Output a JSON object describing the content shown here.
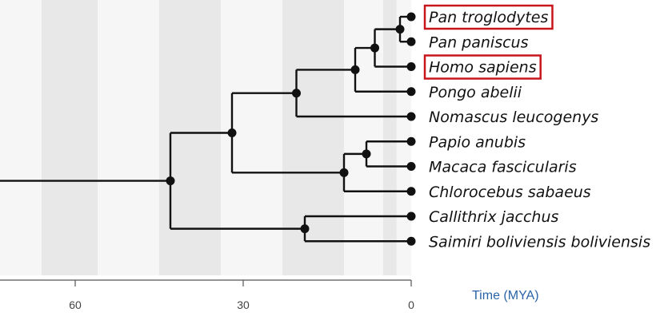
{
  "tree": {
    "taxa": [
      {
        "id": "pan_troglodytes",
        "label": "Pan troglodytes",
        "highlighted": true
      },
      {
        "id": "pan_paniscus",
        "label": "Pan paniscus",
        "highlighted": false
      },
      {
        "id": "homo_sapiens",
        "label": "Homo sapiens",
        "highlighted": true
      },
      {
        "id": "pongo_abelii",
        "label": "Pongo abelii",
        "highlighted": false
      },
      {
        "id": "nomascus_leucogenys",
        "label": "Nomascus leucogenys",
        "highlighted": false
      },
      {
        "id": "papio_anubis",
        "label": "Papio anubis",
        "highlighted": false
      },
      {
        "id": "macaca_fascicularis",
        "label": "Macaca fascicularis",
        "highlighted": false
      },
      {
        "id": "chlorocebus_sabaeus",
        "label": "Chlorocebus sabaeus",
        "highlighted": false
      },
      {
        "id": "callithrix_jacchus",
        "label": "Callithrix jacchus",
        "highlighted": false
      },
      {
        "id": "saimiri_boliviensis",
        "label": "Saimiri boliviensis boliviensis",
        "highlighted": false
      }
    ],
    "clades": [
      {
        "id": "pan",
        "age_mya": 2,
        "children": [
          "pan_troglodytes",
          "pan_paniscus"
        ]
      },
      {
        "id": "homininae",
        "age_mya": 6.5,
        "children": [
          "pan",
          "homo_sapiens"
        ]
      },
      {
        "id": "hominidae",
        "age_mya": 10,
        "children": [
          "homininae",
          "pongo_abelii"
        ]
      },
      {
        "id": "hominoidea",
        "age_mya": 20.5,
        "children": [
          "hominidae",
          "nomascus_leucogenys"
        ]
      },
      {
        "id": "papionini",
        "age_mya": 8,
        "children": [
          "papio_anubis",
          "macaca_fascicularis"
        ]
      },
      {
        "id": "cercopithecinae",
        "age_mya": 12,
        "children": [
          "papionini",
          "chlorocebus_sabaeus"
        ]
      },
      {
        "id": "catarrhini",
        "age_mya": 32,
        "children": [
          "hominoidea",
          "cercopithecinae"
        ]
      },
      {
        "id": "cebidae",
        "age_mya": 19,
        "children": [
          "callithrix_jacchus",
          "saimiri_boliviensis"
        ]
      },
      {
        "id": "simiiformes",
        "age_mya": 43,
        "children": [
          "catarrhini",
          "cebidae"
        ]
      }
    ],
    "root": "simiiformes",
    "root_stem_from_mya": 74,
    "axis": {
      "title": "Time (MYA)",
      "domain_mya": [
        74,
        0
      ],
      "ticks": [
        {
          "value": 60,
          "label": "60"
        },
        {
          "value": 30,
          "label": "30"
        },
        {
          "value": 0,
          "label": "0"
        }
      ]
    },
    "colors": {
      "branch": "#111111",
      "highlight": "#c8151b",
      "axis_title": "#2a64a8",
      "band_light": "#f6f6f6",
      "band_dark": "#e8e8e8"
    }
  }
}
